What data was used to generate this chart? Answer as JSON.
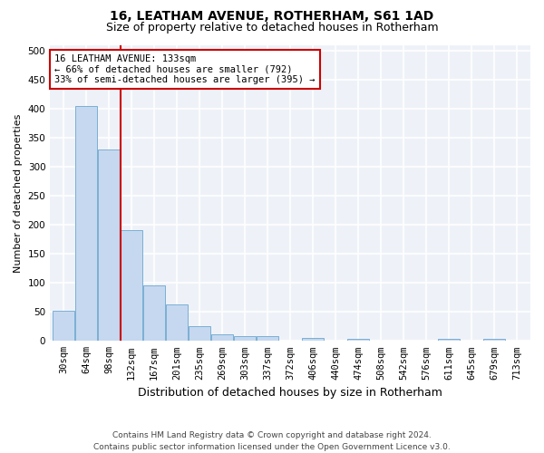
{
  "title": "16, LEATHAM AVENUE, ROTHERHAM, S61 1AD",
  "subtitle": "Size of property relative to detached houses in Rotherham",
  "xlabel": "Distribution of detached houses by size in Rotherham",
  "ylabel": "Number of detached properties",
  "categories": [
    "30sqm",
    "64sqm",
    "98sqm",
    "132sqm",
    "167sqm",
    "201sqm",
    "235sqm",
    "269sqm",
    "303sqm",
    "337sqm",
    "372sqm",
    "406sqm",
    "440sqm",
    "474sqm",
    "508sqm",
    "542sqm",
    "576sqm",
    "611sqm",
    "645sqm",
    "679sqm",
    "713sqm"
  ],
  "values": [
    52,
    405,
    331,
    191,
    96,
    63,
    25,
    12,
    8,
    9,
    0,
    5,
    0,
    4,
    0,
    0,
    0,
    4,
    0,
    3,
    0
  ],
  "bar_color": "#c5d8f0",
  "bar_edge_color": "#7bafd4",
  "property_line_index": 3,
  "property_line_color": "#cc0000",
  "annotation_line1": "16 LEATHAM AVENUE: 133sqm",
  "annotation_line2": "← 66% of detached houses are smaller (792)",
  "annotation_line3": "33% of semi-detached houses are larger (395) →",
  "annotation_box_color": "#cc0000",
  "background_color": "#eef2f8",
  "grid_color": "#ffffff",
  "ylim": [
    0,
    510
  ],
  "yticks": [
    0,
    50,
    100,
    150,
    200,
    250,
    300,
    350,
    400,
    450,
    500
  ],
  "footer_line1": "Contains HM Land Registry data © Crown copyright and database right 2024.",
  "footer_line2": "Contains public sector information licensed under the Open Government Licence v3.0.",
  "title_fontsize": 10,
  "subtitle_fontsize": 9,
  "tick_fontsize": 7.5,
  "ylabel_fontsize": 8,
  "xlabel_fontsize": 9
}
